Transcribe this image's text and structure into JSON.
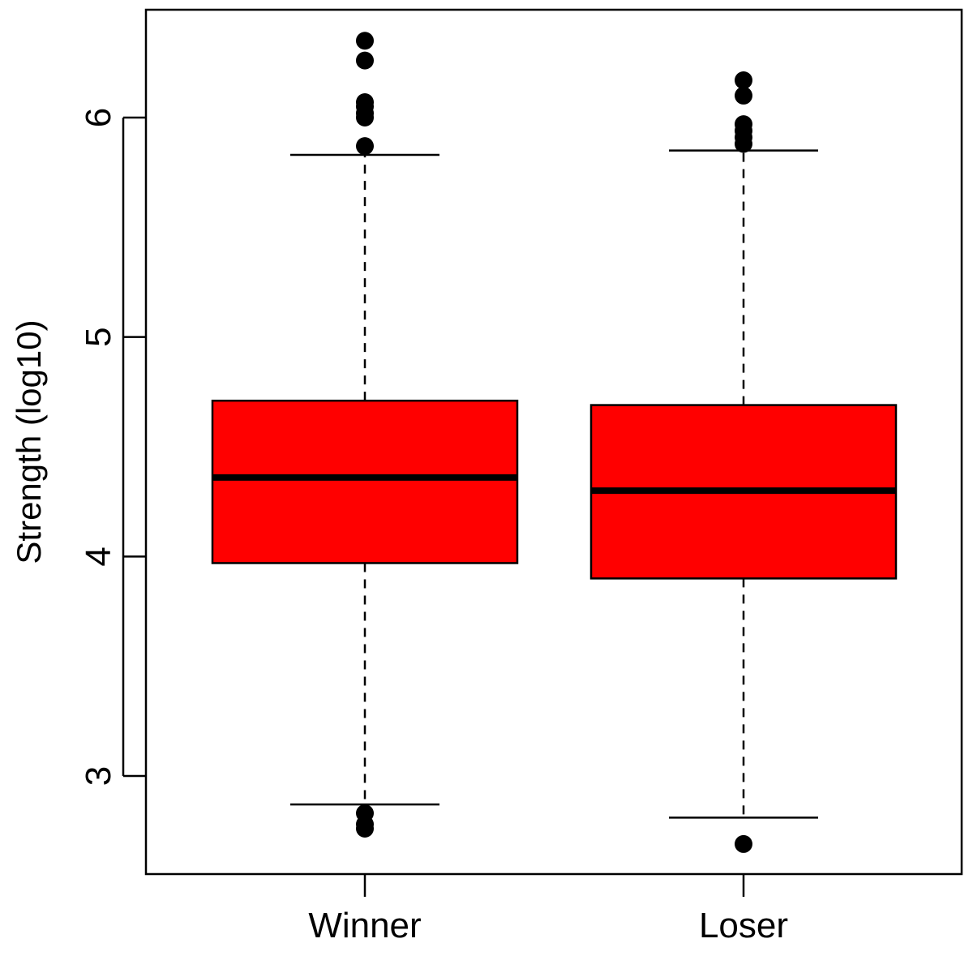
{
  "chart_data": {
    "type": "boxplot",
    "title": "",
    "xlabel": "",
    "ylabel": "Strength (log10)",
    "ylim": [
      2.55,
      6.5
    ],
    "yticks": [
      3,
      4,
      5,
      6
    ],
    "grid": false,
    "box_color": "#ff0000",
    "series": [
      {
        "name": "Winner",
        "whisker_low": 2.87,
        "q1": 3.97,
        "median": 4.36,
        "q3": 4.71,
        "whisker_high": 5.83,
        "outliers": [
          6.35,
          6.26,
          6.07,
          6.05,
          6.02,
          6.0,
          5.87,
          2.83,
          2.78,
          2.76
        ]
      },
      {
        "name": "Loser",
        "whisker_low": 2.81,
        "q1": 3.9,
        "median": 4.3,
        "q3": 4.69,
        "whisker_high": 5.85,
        "outliers": [
          6.17,
          6.1,
          5.97,
          5.94,
          5.91,
          5.88,
          2.69
        ]
      }
    ]
  }
}
